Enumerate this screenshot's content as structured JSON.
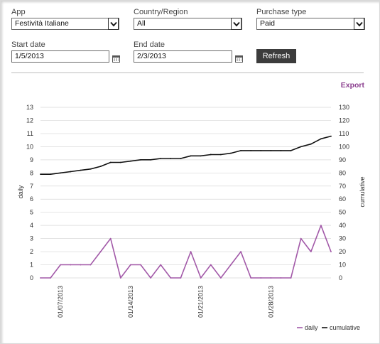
{
  "filters": {
    "app": {
      "label": "App",
      "value": "Festività Italiane"
    },
    "country": {
      "label": "Country/Region",
      "value": "All"
    },
    "purchase": {
      "label": "Purchase type",
      "value": "Paid"
    },
    "start_date": {
      "label": "Start date",
      "value": "1/5/2013"
    },
    "end_date": {
      "label": "End date",
      "value": "2/3/2013"
    },
    "refresh_label": "Refresh"
  },
  "export_label": "Export",
  "colors": {
    "daily": "#a259a8",
    "cumulative": "#111111",
    "grid": "#d8d8d8",
    "accent": "#8b3f8f"
  },
  "chart_data": {
    "type": "line",
    "x_dates": [
      "01/05/2013",
      "01/06/2013",
      "01/07/2013",
      "01/08/2013",
      "01/09/2013",
      "01/10/2013",
      "01/11/2013",
      "01/12/2013",
      "01/13/2013",
      "01/14/2013",
      "01/15/2013",
      "01/16/2013",
      "01/17/2013",
      "01/18/2013",
      "01/19/2013",
      "01/20/2013",
      "01/21/2013",
      "01/22/2013",
      "01/23/2013",
      "01/24/2013",
      "01/25/2013",
      "01/26/2013",
      "01/27/2013",
      "01/28/2013",
      "01/29/2013",
      "01/30/2013",
      "01/31/2013",
      "02/01/2013",
      "02/02/2013",
      "02/03/2013"
    ],
    "x_tick_labels": [
      "01/07/2013",
      "01/14/2013",
      "01/21/2013",
      "01/28/2013"
    ],
    "series": [
      {
        "name": "daily",
        "axis": "left",
        "values": [
          0,
          0,
          1,
          1,
          1,
          1,
          2,
          3,
          0,
          1,
          1,
          0,
          1,
          0,
          0,
          2,
          0,
          1,
          0,
          1,
          2,
          0,
          0,
          0,
          0,
          0,
          3,
          2,
          4,
          2
        ]
      },
      {
        "name": "cumulative",
        "axis": "right",
        "values": [
          79,
          79,
          80,
          81,
          82,
          83,
          85,
          88,
          88,
          89,
          90,
          90,
          91,
          91,
          91,
          93,
          93,
          94,
          94,
          95,
          97,
          97,
          97,
          97,
          97,
          97,
          100,
          102,
          106,
          108
        ]
      }
    ],
    "ylabel_left": "daily",
    "ylabel_right": "cumulative",
    "ylim_left": [
      0,
      13
    ],
    "ylim_right": [
      0,
      130
    ],
    "yticks_left": [
      0,
      1,
      2,
      3,
      4,
      5,
      6,
      7,
      8,
      9,
      10,
      11,
      12,
      13
    ],
    "yticks_right": [
      0,
      10,
      20,
      30,
      40,
      50,
      60,
      70,
      80,
      90,
      100,
      110,
      120,
      130
    ],
    "grid": true,
    "legend_placement": "bottom-right"
  }
}
